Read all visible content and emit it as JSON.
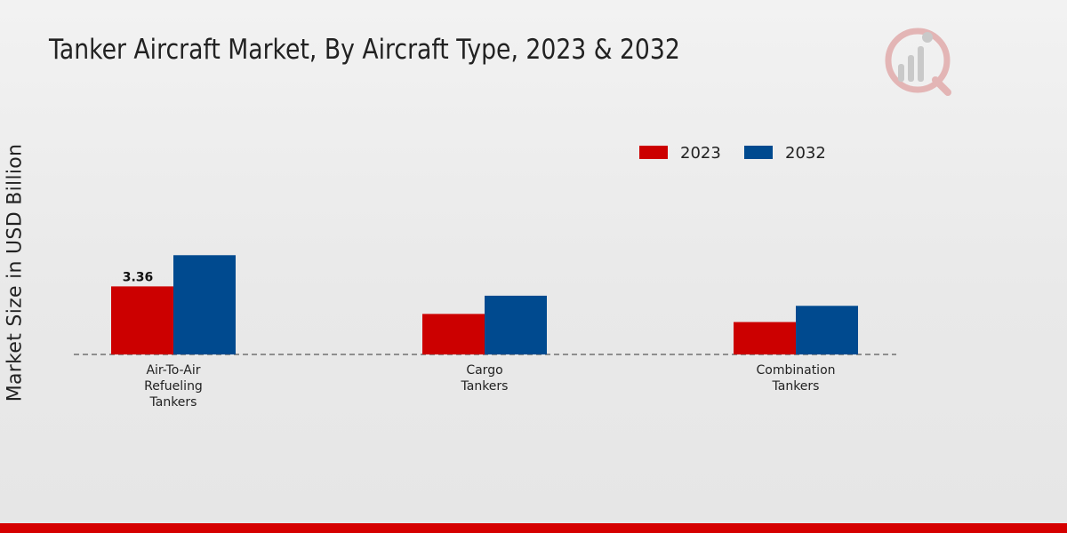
{
  "chart_data": {
    "type": "bar",
    "title": "Tanker Aircraft Market, By Aircraft Type, 2023 & 2032",
    "ylabel": "Market Size in USD Billion",
    "xlabel": "",
    "categories": [
      [
        "Air-To-Air",
        "Refueling",
        "Tankers"
      ],
      [
        "Cargo",
        "Tankers"
      ],
      [
        "Combination",
        "Tankers"
      ]
    ],
    "series": [
      {
        "name": "2023",
        "color": "#cc0000",
        "values": [
          3.36,
          2.0,
          1.6
        ]
      },
      {
        "name": "2032",
        "color": "#004a8f",
        "values": [
          4.9,
          2.9,
          2.4
        ]
      }
    ],
    "data_labels": [
      {
        "series": 0,
        "index": 0,
        "text": "3.36"
      }
    ],
    "ylim": [
      0,
      6.5
    ],
    "legend_position": "top-right",
    "grid": false
  },
  "logo_icon": "market-research-logo-icon"
}
